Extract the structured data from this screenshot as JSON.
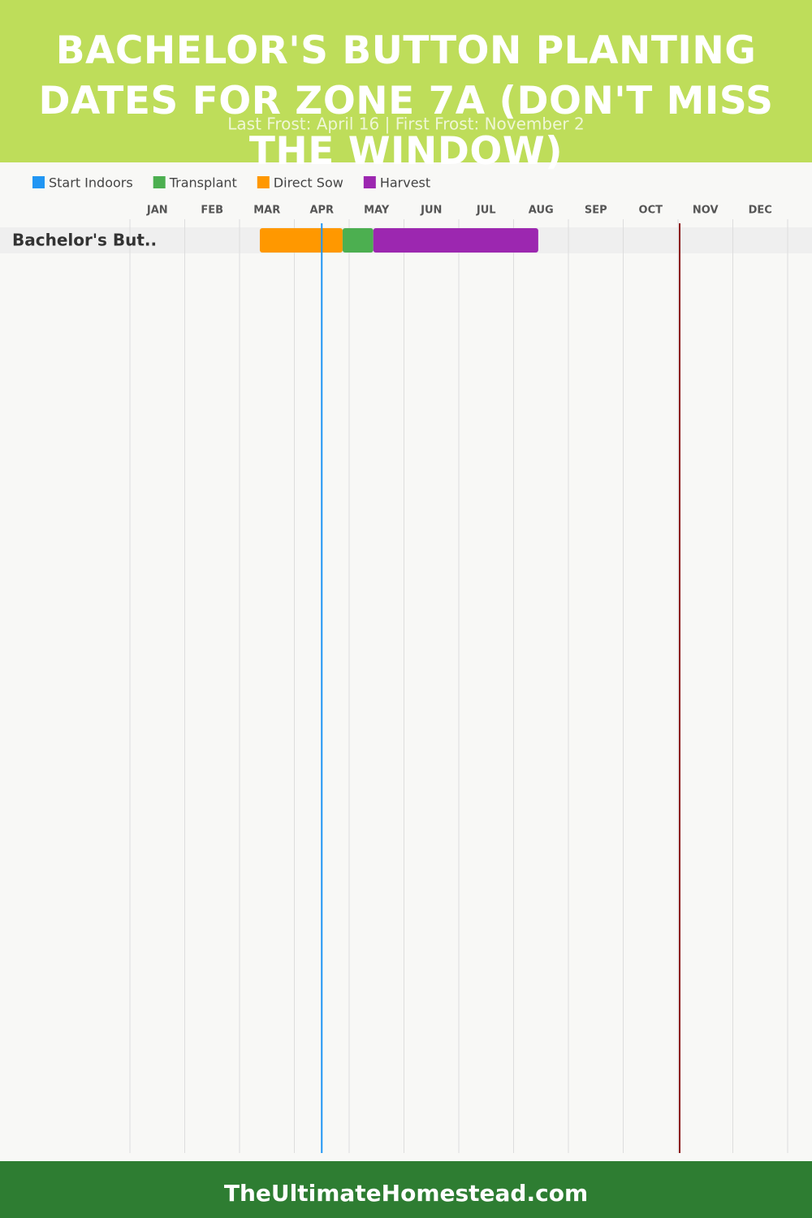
{
  "chart_data": {
    "type": "gantt",
    "title": "BACHELOR'S BUTTON PLANTING DATES FOR ZONE 7A (DON'T MISS THE WINDOW)",
    "subtitle": "Last Frost: April 16 | First Frost: November 2",
    "footer": "TheUltimateHomestead.com",
    "series": [
      {
        "name": "Start Indoors",
        "color": "#2196f3"
      },
      {
        "name": "Transplant",
        "color": "#4caf50"
      },
      {
        "name": "Direct Sow",
        "color": "#ff9800"
      },
      {
        "name": "Harvest",
        "color": "#9c27b0"
      }
    ],
    "categories": [
      "JAN",
      "FEB",
      "MAR",
      "APR",
      "MAY",
      "JUN",
      "JUL",
      "AUG",
      "SEP",
      "OCT",
      "NOV",
      "DEC"
    ],
    "xlim": [
      0,
      12
    ],
    "rows": [
      {
        "label": "Bachelor's But..",
        "segments": [
          {
            "series": 2,
            "start": 2.37,
            "end": 3.88
          },
          {
            "series": 1,
            "start": 3.88,
            "end": 4.44
          },
          {
            "series": 3,
            "start": 4.44,
            "end": 7.45
          }
        ]
      }
    ],
    "frost_lines": [
      {
        "value": 3.5,
        "color": "#2196f3"
      },
      {
        "value": 10.03,
        "color": "#8b1a1a"
      }
    ]
  }
}
